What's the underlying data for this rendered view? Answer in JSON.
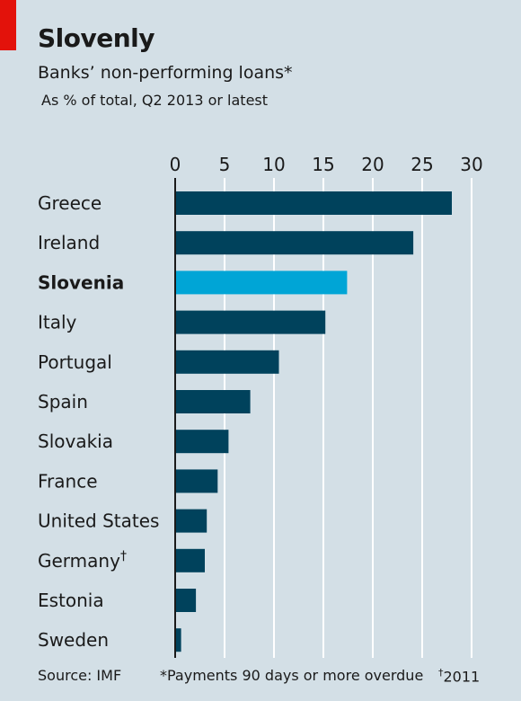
{
  "header": {
    "title": "Slovenly",
    "subtitle": "Banks’ non-performing loans*",
    "subsubtitle": "As % of total, Q2 2013 or latest"
  },
  "footer": {
    "source": "Source: IMF",
    "note": "*Payments 90 days or more overdue",
    "dagger_mark": "†",
    "dagger_note": "2011"
  },
  "colors": {
    "bar": "#00425c",
    "highlight": "#00a5d6",
    "grid": "#ffffff",
    "accent": "#e3120b",
    "background": "#d3dfe6"
  },
  "chart_data": {
    "type": "bar",
    "orientation": "horizontal",
    "xlim": [
      0,
      30
    ],
    "ticks": [
      0,
      5,
      10,
      15,
      20,
      25,
      30
    ],
    "tick_labels": [
      "0",
      "5",
      "10",
      "15",
      "20",
      "25",
      "30"
    ],
    "grid": true,
    "categories": [
      "Greece",
      "Ireland",
      "Slovenia",
      "Italy",
      "Portugal",
      "Spain",
      "Slovakia",
      "France",
      "United States",
      "Germany†",
      "Estonia",
      "Sweden"
    ],
    "values": [
      28.0,
      24.1,
      17.4,
      15.2,
      10.5,
      7.6,
      5.4,
      4.3,
      3.2,
      3.0,
      2.1,
      0.6
    ],
    "highlight": "Slovenia"
  }
}
